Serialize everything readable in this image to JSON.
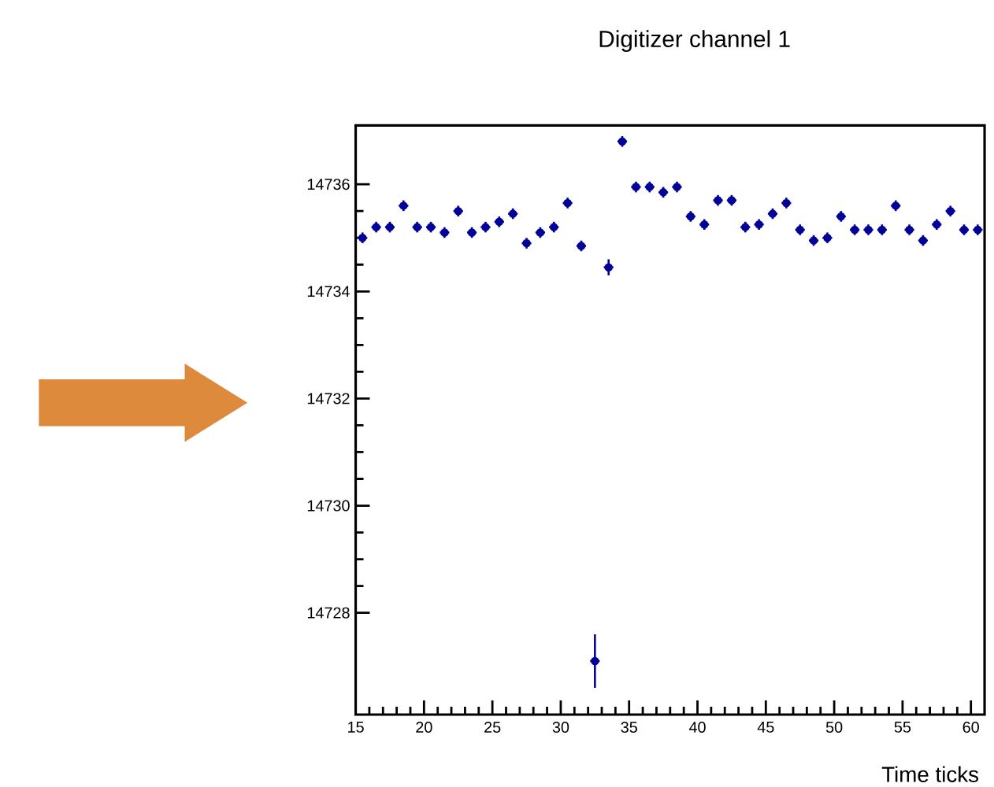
{
  "chart_data": {
    "type": "scatter",
    "title": "Digitizer channel 1",
    "xlabel": "Time ticks",
    "xlim": [
      15,
      61
    ],
    "ylim": [
      14726.1,
      14737.1
    ],
    "xticks": [
      15,
      20,
      25,
      30,
      35,
      40,
      45,
      50,
      55,
      60
    ],
    "yticks": [
      14728,
      14730,
      14732,
      14734,
      14736
    ],
    "color": "#000099",
    "x": [
      15.5,
      16.5,
      17.5,
      18.5,
      19.5,
      20.5,
      21.5,
      22.5,
      23.5,
      24.5,
      25.5,
      26.5,
      27.5,
      28.5,
      29.5,
      30.5,
      31.5,
      32.5,
      33.5,
      34.5,
      35.5,
      36.5,
      37.5,
      38.5,
      39.5,
      40.5,
      41.5,
      42.5,
      43.5,
      44.5,
      45.5,
      46.5,
      47.5,
      48.5,
      49.5,
      50.5,
      51.5,
      52.5,
      53.5,
      54.5,
      55.5,
      56.5,
      57.5,
      58.5,
      59.5,
      60.5
    ],
    "values": [
      14735.0,
      14735.2,
      14735.2,
      14735.6,
      14735.2,
      14735.2,
      14735.1,
      14735.5,
      14735.1,
      14735.2,
      14735.3,
      14735.45,
      14734.9,
      14735.1,
      14735.2,
      14735.65,
      14734.85,
      14727.1,
      14734.45,
      14736.8,
      14735.95,
      14735.95,
      14735.85,
      14735.95,
      14735.4,
      14735.25,
      14735.7,
      14735.7,
      14735.2,
      14735.25,
      14735.45,
      14735.65,
      14735.15,
      14734.95,
      14735.0,
      14735.4,
      14735.15,
      14735.15,
      14735.15,
      14735.6,
      14735.15,
      14734.95,
      14735.25,
      14735.5,
      14735.15,
      14735.15
    ],
    "errors": [
      0.1,
      0.1,
      0.1,
      0.1,
      0.1,
      0.1,
      0.1,
      0.1,
      0.1,
      0.1,
      0.1,
      0.1,
      0.1,
      0.1,
      0.1,
      0.1,
      0.1,
      0.5,
      0.15,
      0.1,
      0.1,
      0.1,
      0.1,
      0.1,
      0.1,
      0.1,
      0.1,
      0.1,
      0.1,
      0.1,
      0.1,
      0.1,
      0.1,
      0.1,
      0.1,
      0.1,
      0.1,
      0.1,
      0.1,
      0.1,
      0.1,
      0.1,
      0.1,
      0.1,
      0.1,
      0.1
    ],
    "xerrors": [
      0.35,
      0.35,
      0.35,
      0.35,
      0.35,
      0.35,
      0.35,
      0.35,
      0.35,
      0.35,
      0.35,
      0.35,
      0.35,
      0.35,
      0.35,
      0.35,
      0.35,
      0.35,
      0.35,
      0.35,
      0.35,
      0.35,
      0.35,
      0.35,
      0.35,
      0.35,
      0.35,
      0.35,
      0.35,
      0.35,
      0.35,
      0.35,
      0.35,
      0.35,
      0.35,
      0.35,
      0.35,
      0.35,
      0.35,
      0.35,
      0.35,
      0.35,
      0.35,
      0.35,
      0.35,
      0.35
    ]
  }
}
